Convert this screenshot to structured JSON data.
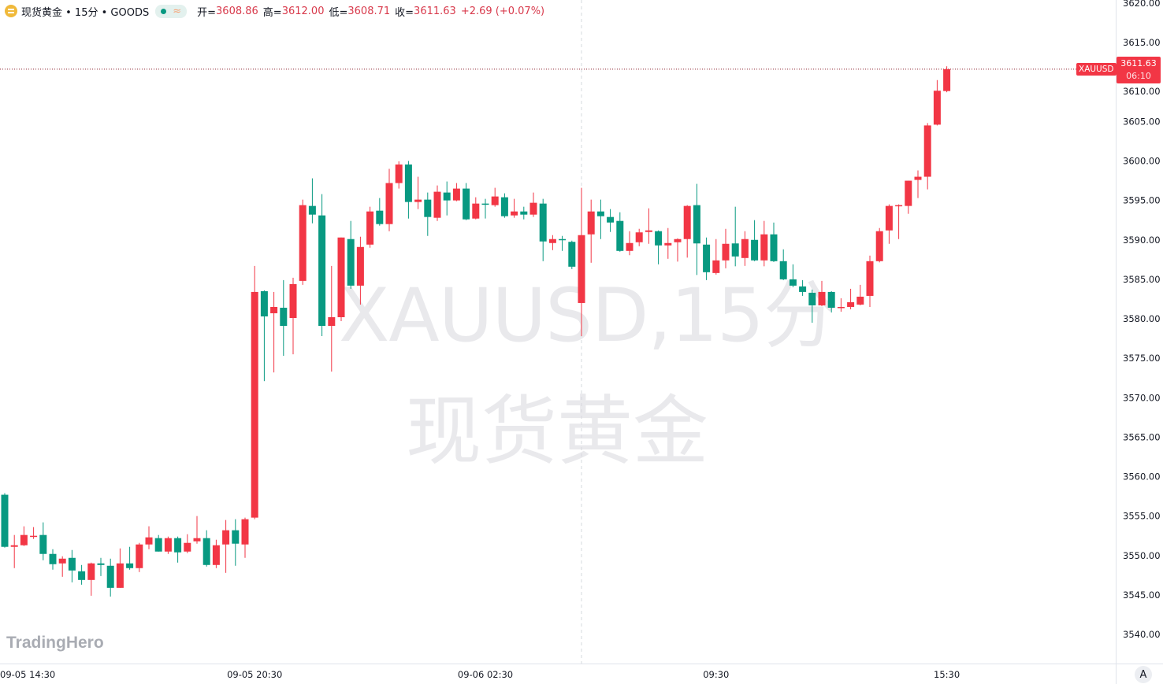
{
  "legend": {
    "title": "现货黄金 • 15分 • GOODS",
    "open_label": "开=",
    "open": "3608.86",
    "high_label": "高=",
    "high": "3612.00",
    "low_label": "低=",
    "low": "3608.71",
    "close_label": "收=",
    "close": "3611.63",
    "change": "+2.69 (+0.07%)"
  },
  "watermark": {
    "line1": "XAUUSD,15分",
    "line2": "现货黄金"
  },
  "brand": "TradingHero",
  "price_tag": {
    "symbol": "XAUUSD",
    "price": "3611.63",
    "countdown": "06:10"
  },
  "axis_button": "A",
  "colors": {
    "up": "#f23645",
    "down": "#089981",
    "axis_text": "#131722",
    "grid_line": "#e0e3eb"
  },
  "chart_data": {
    "type": "candlestick",
    "symbol": "XAUUSD",
    "interval": "15分",
    "ylim": [
      3540,
      3620
    ],
    "y_ticks": [
      3540,
      3545,
      3550,
      3555,
      3560,
      3565,
      3570,
      3575,
      3580,
      3585,
      3590,
      3595,
      3600,
      3605,
      3610,
      3615,
      3620
    ],
    "y_tick_labels": [
      "3540.00",
      "3545.00",
      "3550.00",
      "3555.00",
      "3560.00",
      "3565.00",
      "3570.00",
      "3575.00",
      "3580.00",
      "3585.00",
      "3590.00",
      "3595.00",
      "3600.00",
      "3605.00",
      "3610.00",
      "3615.00",
      "3620.00"
    ],
    "x_ticks": [
      {
        "label": "09-05 14:30",
        "candle": 2
      },
      {
        "label": "09-05 20:30",
        "candle": 26
      },
      {
        "label": "09-06 02:30",
        "candle": 50
      },
      {
        "label": "09:30",
        "candle": 74
      },
      {
        "label": "15:30",
        "candle": 98
      }
    ],
    "session_break_candle": 60,
    "last_price": 3611.63,
    "candles_ohlc": [
      [
        3557.7,
        3557.9,
        3551.0,
        3551.1
      ],
      [
        3551.1,
        3552.6,
        3548.4,
        3551.3
      ],
      [
        3551.3,
        3553.7,
        3551.2,
        3552.6
      ],
      [
        3552.4,
        3553.6,
        3552.1,
        3552.5
      ],
      [
        3552.6,
        3554.2,
        3549.4,
        3550.2
      ],
      [
        3550.2,
        3550.8,
        3548.2,
        3548.9
      ],
      [
        3549.0,
        3549.9,
        3547.3,
        3549.6
      ],
      [
        3549.7,
        3550.7,
        3546.6,
        3548.1
      ],
      [
        3548.0,
        3548.8,
        3546.3,
        3546.9
      ],
      [
        3546.9,
        3549.1,
        3544.9,
        3549.0
      ],
      [
        3549.0,
        3549.7,
        3547.4,
        3548.8
      ],
      [
        3548.7,
        3549.6,
        3544.8,
        3545.9
      ],
      [
        3545.9,
        3550.9,
        3545.9,
        3549.0
      ],
      [
        3549.0,
        3551.1,
        3548.2,
        3548.4
      ],
      [
        3548.4,
        3551.6,
        3547.9,
        3551.4
      ],
      [
        3551.4,
        3553.7,
        3550.8,
        3552.3
      ],
      [
        3552.2,
        3552.6,
        3550.5,
        3550.5
      ],
      [
        3550.5,
        3552.4,
        3550.2,
        3552.2
      ],
      [
        3552.2,
        3552.4,
        3549.1,
        3550.4
      ],
      [
        3550.5,
        3552.7,
        3550.3,
        3551.6
      ],
      [
        3551.8,
        3555.0,
        3551.5,
        3552.2
      ],
      [
        3552.2,
        3553.2,
        3548.6,
        3548.8
      ],
      [
        3548.8,
        3552.0,
        3548.4,
        3551.3
      ],
      [
        3551.4,
        3554.5,
        3547.8,
        3553.2
      ],
      [
        3553.2,
        3554.6,
        3548.7,
        3551.5
      ],
      [
        3551.4,
        3554.8,
        3549.7,
        3554.6
      ],
      [
        3554.8,
        3586.7,
        3554.6,
        3583.4
      ],
      [
        3583.5,
        3583.6,
        3572.1,
        3580.3
      ],
      [
        3580.7,
        3583.4,
        3573.2,
        3581.5
      ],
      [
        3581.4,
        3584.9,
        3575.3,
        3579.1
      ],
      [
        3580.1,
        3585.2,
        3575.5,
        3584.4
      ],
      [
        3584.8,
        3595.1,
        3584.3,
        3594.4
      ],
      [
        3594.3,
        3597.8,
        3592.1,
        3593.2
      ],
      [
        3593.1,
        3595.8,
        3577.8,
        3579.1
      ],
      [
        3579.1,
        3586.7,
        3573.3,
        3580.2
      ],
      [
        3580.2,
        3590.3,
        3579.7,
        3590.3
      ],
      [
        3590.1,
        3592.4,
        3583.8,
        3584.2
      ],
      [
        3584.2,
        3590.4,
        3581.8,
        3589.1
      ],
      [
        3589.4,
        3594.2,
        3589.0,
        3593.6
      ],
      [
        3593.7,
        3595.3,
        3591.8,
        3592.0
      ],
      [
        3592.0,
        3599.0,
        3591.1,
        3597.2
      ],
      [
        3597.2,
        3599.95,
        3596.5,
        3599.55
      ],
      [
        3599.55,
        3600.0,
        3592.7,
        3594.8
      ],
      [
        3594.8,
        3598.0,
        3593.9,
        3595.1
      ],
      [
        3595.1,
        3596.0,
        3590.5,
        3592.9
      ],
      [
        3592.8,
        3596.9,
        3592.4,
        3596.1
      ],
      [
        3596.0,
        3597.4,
        3593.1,
        3595.0
      ],
      [
        3595.0,
        3597.2,
        3594.9,
        3596.5
      ],
      [
        3596.5,
        3597.2,
        3592.5,
        3592.6
      ],
      [
        3592.7,
        3595.4,
        3592.6,
        3594.6
      ],
      [
        3594.6,
        3595.2,
        3592.7,
        3594.5
      ],
      [
        3594.4,
        3596.6,
        3594.2,
        3595.5
      ],
      [
        3595.4,
        3595.9,
        3592.8,
        3593.0
      ],
      [
        3593.1,
        3595.2,
        3592.8,
        3593.6
      ],
      [
        3593.6,
        3594.2,
        3592.6,
        3593.2
      ],
      [
        3593.2,
        3596.0,
        3592.9,
        3594.7
      ],
      [
        3594.6,
        3595.2,
        3587.3,
        3589.8
      ],
      [
        3589.6,
        3590.6,
        3588.7,
        3590.1
      ],
      [
        3590.1,
        3590.5,
        3588.6,
        3590.0
      ],
      [
        3589.75,
        3589.9,
        3586.3,
        3586.6
      ],
      [
        3582.0,
        3596.6,
        3577.8,
        3590.6
      ],
      [
        3590.7,
        3595.1,
        3587.1,
        3593.6
      ],
      [
        3593.6,
        3595.1,
        3590.1,
        3593.0
      ],
      [
        3592.9,
        3593.9,
        3591.0,
        3592.2
      ],
      [
        3592.4,
        3593.5,
        3588.5,
        3588.6
      ],
      [
        3588.6,
        3591.1,
        3588.05,
        3589.6
      ],
      [
        3589.7,
        3591.4,
        3589.2,
        3590.95
      ],
      [
        3591.0,
        3594.0,
        3589.5,
        3591.2
      ],
      [
        3591.1,
        3591.2,
        3586.9,
        3589.3
      ],
      [
        3589.3,
        3591.5,
        3587.6,
        3589.6
      ],
      [
        3589.7,
        3590.2,
        3587.25,
        3590.1
      ],
      [
        3590.1,
        3594.4,
        3587.75,
        3594.3
      ],
      [
        3594.4,
        3597.1,
        3585.55,
        3589.55
      ],
      [
        3589.4,
        3590.3,
        3584.9,
        3585.9
      ],
      [
        3585.8,
        3590.1,
        3585.6,
        3587.4
      ],
      [
        3587.4,
        3591.4,
        3586.4,
        3589.5
      ],
      [
        3589.55,
        3594.2,
        3586.65,
        3587.9
      ],
      [
        3587.7,
        3591.1,
        3586.7,
        3590.1
      ],
      [
        3590.0,
        3592.5,
        3587.3,
        3587.4
      ],
      [
        3587.4,
        3592.4,
        3586.65,
        3590.7
      ],
      [
        3590.7,
        3592.2,
        3587.2,
        3587.3
      ],
      [
        3587.3,
        3588.8,
        3584.9,
        3585.0
      ],
      [
        3585.0,
        3586.9,
        3584.0,
        3584.2
      ],
      [
        3584.1,
        3584.9,
        3582.9,
        3583.4
      ],
      [
        3583.3,
        3583.7,
        3579.5,
        3581.7
      ],
      [
        3581.7,
        3584.8,
        3581.6,
        3583.4
      ],
      [
        3583.4,
        3583.5,
        3580.8,
        3581.4
      ],
      [
        3581.4,
        3582.6,
        3580.9,
        3581.5
      ],
      [
        3581.5,
        3583.8,
        3581.2,
        3582.1
      ],
      [
        3581.8,
        3584.3,
        3581.7,
        3582.8
      ],
      [
        3582.9,
        3588.0,
        3581.5,
        3587.3
      ],
      [
        3587.3,
        3591.5,
        3587.15,
        3591.1
      ],
      [
        3591.2,
        3594.5,
        3589.5,
        3594.3
      ],
      [
        3594.3,
        3594.5,
        3590.1,
        3594.4
      ],
      [
        3594.3,
        3597.5,
        3593.3,
        3597.5
      ],
      [
        3597.6,
        3598.8,
        3595.3,
        3598.0
      ],
      [
        3598.0,
        3604.8,
        3596.4,
        3604.5
      ],
      [
        3604.6,
        3610.25,
        3604.5,
        3608.9
      ],
      [
        3608.86,
        3612.0,
        3608.71,
        3611.63
      ]
    ]
  }
}
